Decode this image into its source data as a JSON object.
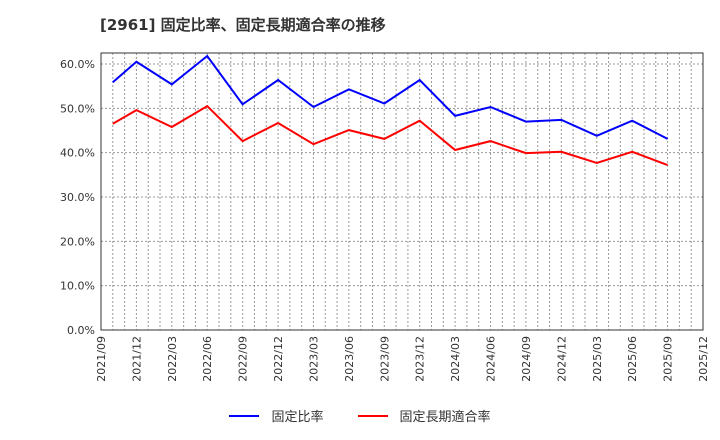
{
  "header": {
    "title": "[2961]  固定比率、固定長期適合率の推移"
  },
  "chart_data": {
    "type": "line",
    "title": "[2961]  固定比率、固定長期適合率の推移",
    "xlabel": "",
    "ylabel": "",
    "ylim": [
      0,
      62
    ],
    "yticks": [
      "0.0%",
      "10.0%",
      "20.0%",
      "30.0%",
      "40.0%",
      "50.0%",
      "60.0%"
    ],
    "xticks": [
      "2021/09",
      "2021/12",
      "2022/03",
      "2022/06",
      "2022/09",
      "2022/12",
      "2023/03",
      "2023/06",
      "2023/09",
      "2023/12",
      "2024/03",
      "2024/06",
      "2024/09",
      "2024/12",
      "2025/03",
      "2025/06",
      "2025/09",
      "2025/12"
    ],
    "grid": true,
    "legend_position": "bottom",
    "x": [
      "2021/10",
      "2021/12",
      "2022/03",
      "2022/06",
      "2022/09",
      "2022/12",
      "2023/03",
      "2023/06",
      "2023/09",
      "2023/12",
      "2024/03",
      "2024/06",
      "2024/09",
      "2024/12",
      "2025/03",
      "2025/06",
      "2025/09"
    ],
    "series": [
      {
        "name": "固定比率",
        "color": "#0000ff",
        "values": [
          55.9,
          60.5,
          55.4,
          61.8,
          50.9,
          56.4,
          50.3,
          54.3,
          51.1,
          56.4,
          48.3,
          50.3,
          47.0,
          47.4,
          43.8,
          47.2,
          43.1
        ]
      },
      {
        "name": "固定長期適合率",
        "color": "#ff0000",
        "values": [
          46.5,
          49.6,
          45.8,
          50.5,
          42.6,
          46.7,
          41.9,
          45.1,
          43.1,
          47.2,
          40.6,
          42.6,
          39.9,
          40.2,
          37.7,
          40.2,
          37.2
        ]
      }
    ]
  },
  "legend": {
    "items": [
      {
        "label": "固定比率",
        "color": "#0000ff"
      },
      {
        "label": "固定長期適合率",
        "color": "#ff0000"
      }
    ]
  }
}
